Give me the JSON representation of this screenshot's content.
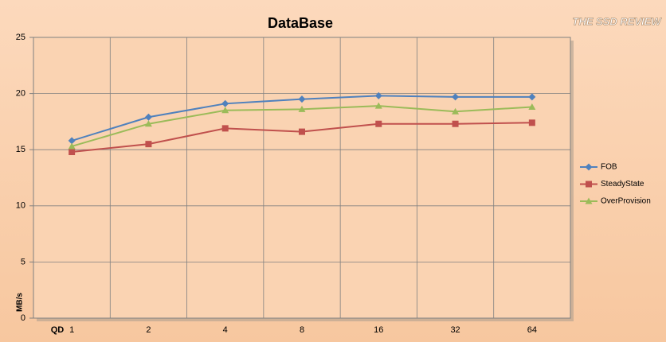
{
  "chart_data": {
    "type": "line",
    "title": "DataBase",
    "watermark": "THE SSD REVIEW",
    "x_label": "QD",
    "y_label": "MB/s",
    "categories": [
      "1",
      "2",
      "4",
      "8",
      "16",
      "32",
      "64"
    ],
    "series": [
      {
        "name": "FOB",
        "color": "#4f81bd",
        "marker": "diamond",
        "values": [
          15.8,
          17.9,
          19.1,
          19.5,
          19.8,
          19.7,
          19.7
        ]
      },
      {
        "name": "SteadyState",
        "color": "#c0504d",
        "marker": "square",
        "values": [
          14.8,
          15.5,
          16.9,
          16.6,
          17.3,
          17.3,
          17.4
        ]
      },
      {
        "name": "OverProvision",
        "color": "#9bbb59",
        "marker": "triangle",
        "values": [
          15.3,
          17.3,
          18.5,
          18.6,
          18.9,
          18.4,
          18.8
        ]
      }
    ],
    "ylim": [
      0,
      25
    ],
    "yticks": [
      0,
      5,
      10,
      15,
      20,
      25
    ],
    "grid": true,
    "legend": "right"
  }
}
